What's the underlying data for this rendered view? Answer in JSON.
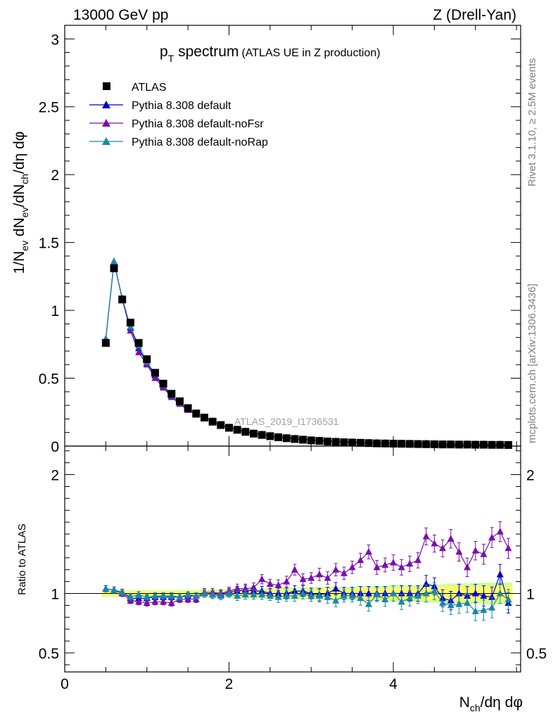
{
  "header": {
    "left": "13000 GeV pp",
    "right": "Z (Drell-Yan)"
  },
  "side_labels": {
    "rivet": "Rivet 3.1.10, ≥ 2.5M events",
    "mcplots": "mcplots.cern.ch [arXiv:1306.3436]"
  },
  "watermark": "ATLAS_2019_I1736531",
  "chart_data": {
    "type": "line",
    "title_main": "p",
    "title_sub": "T",
    "title_rest": " spectrum",
    "title_note": "(ATLAS UE in Z production)",
    "xlabel": "N",
    "xlabel_sub": "ch",
    "xlabel_rest": "/dη dφ",
    "ylabel": "1/N",
    "ylabel_sub1": "ev",
    "ylabel_mid": " dN",
    "ylabel_sub2": "ev",
    "ylabel_mid2": "/dN",
    "ylabel_sub3": "ch",
    "ylabel_rest": "/dη dφ",
    "ratio_ylabel": "Ratio to ATLAS",
    "xlim": [
      0,
      5.55
    ],
    "ylim": [
      0,
      3.1
    ],
    "ratio_ylim": [
      0.34,
      2.24
    ],
    "x_ticks": [
      0,
      2,
      4
    ],
    "x_tick_labels": [
      "0",
      "2",
      "4"
    ],
    "y_ticks": [
      0,
      0.5,
      1,
      1.5,
      2,
      2.5,
      3
    ],
    "y_tick_labels": [
      "0",
      "0.5",
      "1",
      "1.5",
      "2",
      "2.5",
      "3"
    ],
    "ratio_y_ticks": [
      0.5,
      1,
      2
    ],
    "ratio_y_tick_labels": [
      "0.5",
      "1",
      "2"
    ],
    "legend": [
      "ATLAS",
      "Pythia 8.308 default",
      "Pythia 8.308 default-noFsr",
      "Pythia 8.308 default-noRap"
    ],
    "colors": {
      "data": "#000000",
      "default": "#0000cc",
      "noFsr": "#7a10a8",
      "noRap": "#1a86a8",
      "band_inner": "#ffff66",
      "band_outer": "#ccff99"
    },
    "x": [
      0.5,
      0.6,
      0.7,
      0.8,
      0.9,
      1.0,
      1.1,
      1.2,
      1.3,
      1.4,
      1.5,
      1.6,
      1.7,
      1.8,
      1.9,
      2.0,
      2.1,
      2.2,
      2.3,
      2.4,
      2.5,
      2.6,
      2.7,
      2.8,
      2.9,
      3.0,
      3.1,
      3.2,
      3.3,
      3.4,
      3.5,
      3.6,
      3.7,
      3.8,
      3.9,
      4.0,
      4.1,
      4.2,
      4.3,
      4.4,
      4.5,
      4.6,
      4.7,
      4.8,
      4.9,
      5.0,
      5.1,
      5.2,
      5.3,
      5.4
    ],
    "series": [
      {
        "name": "ATLAS",
        "values": [
          0.76,
          1.31,
          1.08,
          0.91,
          0.76,
          0.64,
          0.54,
          0.46,
          0.385,
          0.33,
          0.28,
          0.24,
          0.21,
          0.18,
          0.155,
          0.135,
          0.12,
          0.105,
          0.092,
          0.082,
          0.073,
          0.065,
          0.058,
          0.052,
          0.047,
          0.042,
          0.038,
          0.034,
          0.031,
          0.028,
          0.026,
          0.024,
          0.022,
          0.02,
          0.019,
          0.018,
          0.017,
          0.016,
          0.015,
          0.014,
          0.013,
          0.012,
          0.012,
          0.011,
          0.011,
          0.01,
          0.01,
          0.009,
          0.009,
          0.008
        ]
      },
      {
        "name": "Pythia 8.308 default",
        "values": [
          0.79,
          1.35,
          1.09,
          0.87,
          0.72,
          0.61,
          0.52,
          0.44,
          0.37,
          0.32,
          0.27,
          0.235,
          0.21,
          0.18,
          0.155,
          0.137,
          0.122,
          0.108,
          0.094,
          0.083,
          0.073,
          0.065,
          0.058,
          0.053,
          0.048,
          0.042,
          0.038,
          0.034,
          0.032,
          0.028,
          0.026,
          0.024,
          0.022,
          0.02,
          0.019,
          0.018,
          0.017,
          0.016,
          0.015,
          0.015,
          0.014,
          0.012,
          0.011,
          0.011,
          0.011,
          0.01,
          0.01,
          0.009,
          0.01,
          0.008
        ]
      },
      {
        "name": "Pythia 8.308 default-noFsr",
        "values": [
          0.79,
          1.36,
          1.08,
          0.85,
          0.69,
          0.6,
          0.5,
          0.43,
          0.36,
          0.31,
          0.265,
          0.23,
          0.213,
          0.183,
          0.155,
          0.137,
          0.124,
          0.109,
          0.095,
          0.088,
          0.077,
          0.069,
          0.063,
          0.058,
          0.052,
          0.046,
          0.043,
          0.038,
          0.036,
          0.032,
          0.03,
          0.028,
          0.027,
          0.024,
          0.024,
          0.023,
          0.021,
          0.02,
          0.019,
          0.021,
          0.019,
          0.017,
          0.017,
          0.015,
          0.015,
          0.014,
          0.015,
          0.013,
          0.014,
          0.012
        ]
      },
      {
        "name": "Pythia 8.308 default-noRap",
        "values": [
          0.79,
          1.36,
          1.09,
          0.88,
          0.74,
          0.62,
          0.53,
          0.45,
          0.375,
          0.32,
          0.275,
          0.235,
          0.21,
          0.18,
          0.152,
          0.135,
          0.118,
          0.104,
          0.091,
          0.081,
          0.071,
          0.063,
          0.057,
          0.051,
          0.047,
          0.041,
          0.037,
          0.033,
          0.029,
          0.027,
          0.025,
          0.023,
          0.02,
          0.02,
          0.018,
          0.018,
          0.016,
          0.015,
          0.015,
          0.014,
          0.013,
          0.012,
          0.011,
          0.01,
          0.01,
          0.0085,
          0.0085,
          0.008,
          0.009,
          0.0075
        ]
      }
    ],
    "ratio_series": [
      {
        "name": "Pythia 8.308 default",
        "values": [
          1.04,
          1.03,
          1.01,
          0.96,
          0.96,
          0.96,
          0.97,
          0.97,
          0.97,
          0.97,
          0.98,
          0.98,
          1.0,
          0.99,
          0.99,
          1.01,
          1.02,
          1.03,
          1.02,
          1.02,
          1.0,
          1.0,
          1.0,
          1.02,
          1.02,
          1.0,
          0.99,
          1.0,
          1.04,
          1.0,
          1.0,
          1.0,
          1.0,
          1.0,
          1.0,
          1.0,
          1.0,
          1.0,
          1.0,
          1.08,
          1.06,
          0.96,
          0.94,
          1.0,
          0.98,
          1.0,
          0.98,
          0.97,
          1.16,
          0.92
        ]
      },
      {
        "name": "Pythia 8.308 default-noFsr",
        "values": [
          1.04,
          1.03,
          1.0,
          0.94,
          0.93,
          0.92,
          0.93,
          0.93,
          0.92,
          0.95,
          0.95,
          0.95,
          1.01,
          1.01,
          1.0,
          1.02,
          1.04,
          1.04,
          1.05,
          1.12,
          1.08,
          1.07,
          1.1,
          1.2,
          1.12,
          1.13,
          1.16,
          1.13,
          1.2,
          1.17,
          1.22,
          1.28,
          1.35,
          1.22,
          1.24,
          1.26,
          1.22,
          1.25,
          1.28,
          1.48,
          1.42,
          1.38,
          1.46,
          1.35,
          1.22,
          1.36,
          1.33,
          1.47,
          1.52,
          1.38
        ]
      },
      {
        "name": "Pythia 8.308 default-noRap",
        "values": [
          1.04,
          1.03,
          1.01,
          0.97,
          0.99,
          0.97,
          0.98,
          0.98,
          0.98,
          0.97,
          0.99,
          0.98,
          1.0,
          0.99,
          0.98,
          1.0,
          0.98,
          0.99,
          0.99,
          0.99,
          0.98,
          0.97,
          0.98,
          0.98,
          1.0,
          0.98,
          0.98,
          0.97,
          0.94,
          0.98,
          0.98,
          0.96,
          0.91,
          0.99,
          0.95,
          1.0,
          0.93,
          0.96,
          0.98,
          1.0,
          1.02,
          0.92,
          0.9,
          0.91,
          0.92,
          0.85,
          0.86,
          0.88,
          1.0,
          0.95
        ]
      }
    ],
    "ratio_errors": [
      0.02,
      0.02,
      0.02,
      0.02,
      0.02,
      0.02,
      0.02,
      0.02,
      0.02,
      0.02,
      0.02,
      0.02,
      0.025,
      0.025,
      0.025,
      0.025,
      0.03,
      0.03,
      0.03,
      0.03,
      0.03,
      0.035,
      0.035,
      0.035,
      0.035,
      0.035,
      0.04,
      0.04,
      0.04,
      0.04,
      0.04,
      0.045,
      0.045,
      0.045,
      0.045,
      0.05,
      0.05,
      0.05,
      0.05,
      0.055,
      0.055,
      0.055,
      0.06,
      0.06,
      0.06,
      0.06,
      0.065,
      0.065,
      0.065,
      0.065
    ]
  }
}
